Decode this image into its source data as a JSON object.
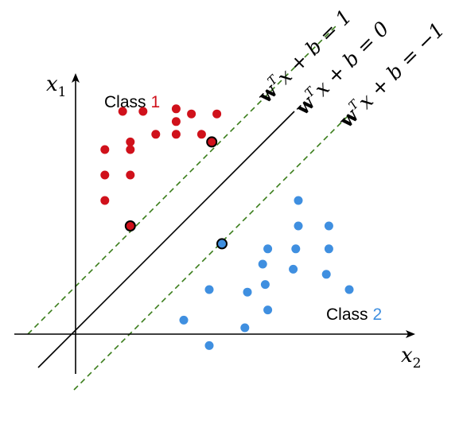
{
  "axes": {
    "x1_label": "x",
    "x1_sub": "1",
    "x2_label": "x",
    "x2_sub": "2"
  },
  "classes": {
    "class1": {
      "word": "Class",
      "num": "1",
      "color": "#d0111b"
    },
    "class2": {
      "word": "Class",
      "num": "2",
      "color": "#3f8fe0"
    }
  },
  "lines": {
    "plus": {
      "w": "w",
      "T": "T",
      "rest": "x + b = 1",
      "color": "#3a7d1a",
      "style": "dashed"
    },
    "zero": {
      "w": "w",
      "T": "T",
      "rest": "x + b = 0",
      "color": "#000000",
      "style": "solid"
    },
    "minus": {
      "w": "w",
      "T": "T",
      "rest": "x + b = −1",
      "color": "#3a7d1a",
      "style": "dashed"
    }
  },
  "chart_data": {
    "type": "scatter",
    "title": "",
    "series": [
      {
        "name": "Class 1",
        "color": "#d0111b",
        "points": [
          [
            8.75,
            1.85
          ],
          [
            8.75,
            2.65
          ],
          [
            8.85,
            3.95
          ],
          [
            8.65,
            4.55
          ],
          [
            8.35,
            3.95
          ],
          [
            8.65,
            5.55
          ],
          [
            7.85,
            3.15
          ],
          [
            7.85,
            3.95
          ],
          [
            7.85,
            4.95
          ],
          [
            7.55,
            2.15
          ],
          [
            7.25,
            1.15
          ],
          [
            7.25,
            2.15
          ],
          [
            6.25,
            1.15
          ],
          [
            6.25,
            2.15
          ],
          [
            5.25,
            1.15
          ]
        ],
        "support_vectors": [
          [
            7.55,
            5.35
          ],
          [
            4.25,
            2.15
          ]
        ]
      },
      {
        "name": "Class 2",
        "color": "#3f8fe0",
        "points": [
          [
            5.25,
            8.75
          ],
          [
            4.25,
            8.75
          ],
          [
            4.25,
            9.95
          ],
          [
            3.35,
            7.55
          ],
          [
            3.35,
            8.65
          ],
          [
            3.35,
            9.95
          ],
          [
            2.75,
            7.35
          ],
          [
            2.55,
            8.55
          ],
          [
            2.35,
            9.85
          ],
          [
            1.95,
            7.45
          ],
          [
            1.75,
            10.75
          ],
          [
            1.75,
            5.25
          ],
          [
            1.65,
            6.75
          ],
          [
            0.95,
            7.55
          ],
          [
            0.55,
            4.25
          ],
          [
            0.25,
            6.65
          ],
          [
            -0.45,
            5.25
          ]
        ],
        "support_vectors": [
          [
            3.55,
            5.75
          ]
        ]
      }
    ],
    "decision_boundary": "w^T x + b = 0",
    "margins": [
      "w^T x + b = 1",
      "w^T x + b = -1"
    ]
  }
}
